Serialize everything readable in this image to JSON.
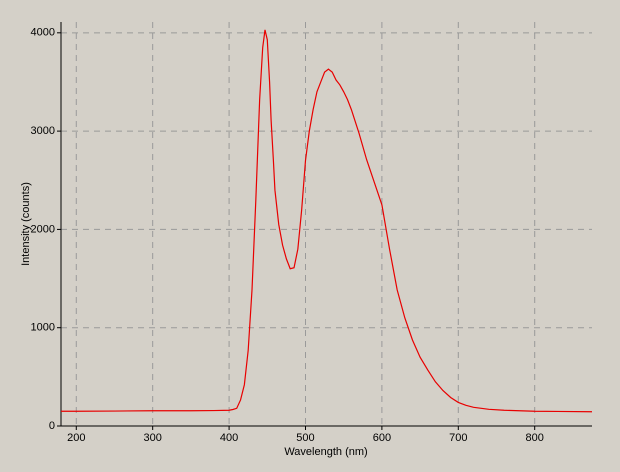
{
  "chart_data": {
    "type": "line",
    "x_label": "Wavelength (nm)",
    "y_label": "Intensity (counts)",
    "xlim": [
      180,
      875
    ],
    "ylim": [
      0,
      4110
    ],
    "xticks": [
      200,
      300,
      400,
      500,
      600,
      700,
      800
    ],
    "yticks": [
      0,
      1000,
      2000,
      3000,
      4000
    ],
    "grid": true,
    "series": [
      {
        "color": "#e80000",
        "x": [
          180,
          200,
          250,
          300,
          350,
          380,
          400,
          405,
          410,
          415,
          420,
          425,
          430,
          435,
          440,
          444,
          447,
          450,
          453,
          455,
          458,
          460,
          465,
          470,
          475,
          480,
          485,
          490,
          495,
          500,
          505,
          510,
          515,
          520,
          525,
          530,
          535,
          540,
          545,
          550,
          555,
          560,
          570,
          580,
          590,
          600,
          610,
          620,
          630,
          640,
          650,
          660,
          670,
          680,
          690,
          700,
          710,
          720,
          740,
          760,
          780,
          800,
          830,
          875
        ],
        "values": [
          150,
          150,
          152,
          155,
          155,
          157,
          160,
          168,
          180,
          265,
          420,
          770,
          1385,
          2300,
          3320,
          3850,
          4030,
          3930,
          3500,
          3110,
          2700,
          2400,
          2050,
          1840,
          1700,
          1600,
          1610,
          1800,
          2200,
          2700,
          3000,
          3220,
          3400,
          3500,
          3600,
          3630,
          3600,
          3520,
          3470,
          3400,
          3320,
          3220,
          2980,
          2710,
          2480,
          2250,
          1800,
          1385,
          1100,
          875,
          700,
          570,
          450,
          360,
          290,
          240,
          210,
          190,
          170,
          160,
          155,
          150,
          148,
          145
        ]
      }
    ]
  }
}
